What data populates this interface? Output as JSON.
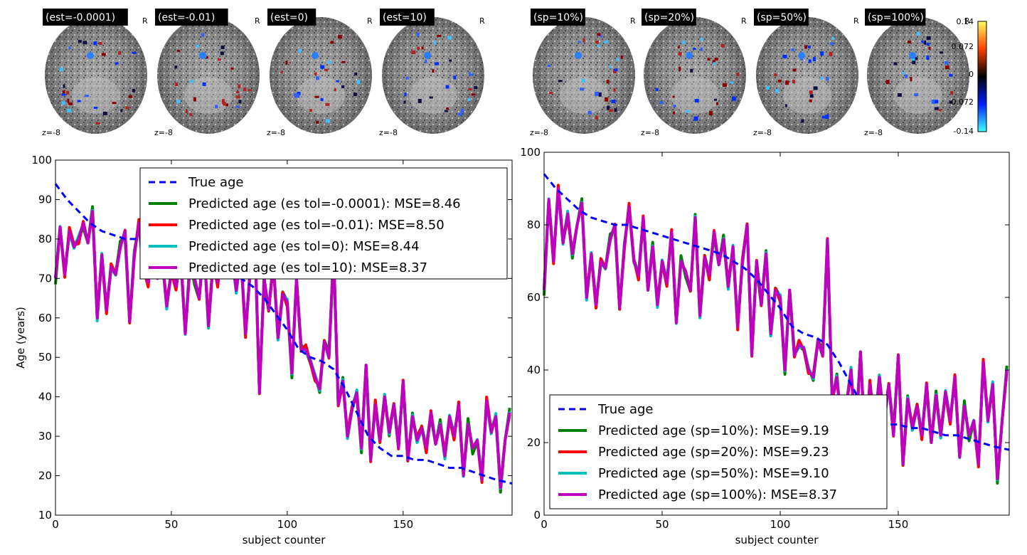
{
  "brains": {
    "left": [
      {
        "label": "(est=-0.0001)",
        "orient": "R",
        "z": "z=-8"
      },
      {
        "label": "(est=-0.01)",
        "orient": "R",
        "z": "z=-8"
      },
      {
        "label": "(est=0)",
        "orient": "R",
        "z": "z=-8"
      },
      {
        "label": "(est=10)",
        "orient": "R",
        "z": "z=-8"
      }
    ],
    "right": [
      {
        "label": "(sp=10%)",
        "orient": "R",
        "z": "z=-8"
      },
      {
        "label": "(sp=20%)",
        "orient": "R",
        "z": "z=-8"
      },
      {
        "label": "(sp=50%)",
        "orient": "R",
        "z": "z=-8"
      },
      {
        "label": "(sp=100%)",
        "orient": "R",
        "z": "z=-8"
      }
    ]
  },
  "colorbar": {
    "ticks": [
      "0.14",
      "0.072",
      "0",
      "-0.072",
      "-0.14"
    ],
    "colors": [
      "#ffff60",
      "#ff4000",
      "#000000",
      "#0020ff",
      "#40ffff"
    ]
  },
  "chart_data": [
    {
      "type": "line",
      "xlabel": "subject counter",
      "ylabel": "Age (years)",
      "xlim": [
        0,
        197
      ],
      "ylim": [
        10,
        100
      ],
      "xticks": [
        0,
        50,
        100,
        150
      ],
      "yticks": [
        10,
        20,
        30,
        40,
        50,
        60,
        70,
        80,
        90,
        100
      ],
      "legend_position": "top-center",
      "series": [
        {
          "name": "True age",
          "style": "dashed",
          "color": "#0000ff"
        },
        {
          "name": "Predicted age (es tol=-0.0001): MSE=8.46",
          "color": "#008000"
        },
        {
          "name": "Predicted age (es tol=-0.01): MSE=8.50",
          "color": "#ff0000"
        },
        {
          "name": "Predicted age (es tol=0): MSE=8.44",
          "color": "#00bfbf"
        },
        {
          "name": "Predicted age (es tol=10): MSE=8.37",
          "color": "#bf00bf"
        }
      ],
      "true_age_x": [
        0,
        5,
        10,
        15,
        20,
        25,
        30,
        35,
        40,
        45,
        50,
        55,
        60,
        65,
        70,
        75,
        80,
        85,
        90,
        95,
        100,
        105,
        110,
        115,
        120,
        125,
        130,
        135,
        140,
        145,
        150,
        155,
        160,
        165,
        170,
        175,
        180,
        185,
        190,
        197
      ],
      "true_age_y": [
        94,
        90,
        87,
        84,
        82,
        81,
        80,
        80,
        79,
        78,
        77,
        76,
        75,
        74,
        73,
        72,
        70,
        68,
        65,
        61,
        57,
        52,
        50,
        49,
        47,
        42,
        36,
        30,
        27,
        25,
        25,
        24,
        24,
        23,
        22,
        22,
        21,
        20,
        19,
        18
      ],
      "predicted_x": [
        0,
        2,
        4,
        6,
        8,
        10,
        12,
        14,
        16,
        18,
        20,
        22,
        24,
        26,
        28,
        30,
        32,
        34,
        36,
        38,
        40,
        42,
        44,
        46,
        48,
        50,
        52,
        54,
        56,
        58,
        60,
        62,
        64,
        66,
        68,
        70,
        72,
        74,
        76,
        78,
        80,
        82,
        84,
        86,
        88,
        90,
        92,
        94,
        96,
        98,
        100,
        102,
        104,
        106,
        108,
        110,
        112,
        114,
        116,
        118,
        120,
        122,
        124,
        126,
        128,
        130,
        132,
        134,
        136,
        138,
        140,
        142,
        144,
        146,
        148,
        150,
        152,
        154,
        156,
        158,
        160,
        162,
        164,
        166,
        168,
        170,
        172,
        174,
        176,
        178,
        180,
        182,
        184,
        186,
        188,
        190,
        192,
        194,
        196
      ],
      "predicted_y": [
        70,
        83,
        71,
        82,
        78,
        80,
        84,
        79,
        87,
        60,
        76,
        62,
        73,
        71,
        78,
        82,
        59,
        76,
        84,
        72,
        69,
        83,
        70,
        75,
        63,
        72,
        68,
        76,
        56,
        73,
        70,
        65,
        79,
        58,
        74,
        69,
        80,
        71,
        76,
        67,
        76,
        56,
        72,
        80,
        41,
        70,
        62,
        74,
        55,
        66,
        64,
        46,
        70,
        52,
        52,
        49,
        45,
        42,
        54,
        50,
        77,
        38,
        44,
        30,
        37,
        41,
        27,
        48,
        24,
        38,
        29,
        40,
        31,
        38,
        27,
        44,
        24,
        35,
        29,
        32,
        27,
        36,
        28,
        33,
        25,
        35,
        30,
        38,
        20,
        33,
        27,
        29,
        19,
        39,
        31,
        35,
        17,
        29,
        36
      ]
    },
    {
      "type": "line",
      "xlabel": "subject counter",
      "ylabel": "",
      "xlim": [
        0,
        197
      ],
      "ylim": [
        0,
        100
      ],
      "xticks": [
        0,
        50,
        100,
        150
      ],
      "yticks": [
        0,
        20,
        40,
        60,
        80,
        100
      ],
      "legend_position": "bottom-left",
      "series": [
        {
          "name": "True age",
          "style": "dashed",
          "color": "#0000ff"
        },
        {
          "name": "Predicted age (sp=10%): MSE=9.19",
          "color": "#008000"
        },
        {
          "name": "Predicted age (sp=20%): MSE=9.23",
          "color": "#ff0000"
        },
        {
          "name": "Predicted age (sp=50%): MSE=9.10",
          "color": "#00bfbf"
        },
        {
          "name": "Predicted age (sp=100%): MSE=8.37",
          "color": "#bf00bf"
        }
      ],
      "true_age_x": [
        0,
        5,
        10,
        15,
        20,
        25,
        30,
        35,
        40,
        45,
        50,
        55,
        60,
        65,
        70,
        75,
        80,
        85,
        90,
        95,
        100,
        105,
        110,
        115,
        120,
        125,
        130,
        135,
        140,
        145,
        150,
        155,
        160,
        165,
        170,
        175,
        180,
        185,
        190,
        197
      ],
      "true_age_y": [
        94,
        90,
        87,
        84,
        82,
        81,
        80,
        80,
        79,
        78,
        77,
        76,
        75,
        74,
        73,
        72,
        70,
        68,
        65,
        61,
        57,
        52,
        50,
        49,
        47,
        42,
        36,
        30,
        27,
        25,
        25,
        24,
        24,
        23,
        22,
        22,
        21,
        20,
        19,
        18
      ],
      "predicted_x": [
        0,
        2,
        4,
        6,
        8,
        10,
        12,
        14,
        16,
        18,
        20,
        22,
        24,
        26,
        28,
        30,
        32,
        34,
        36,
        38,
        40,
        42,
        44,
        46,
        48,
        50,
        52,
        54,
        56,
        58,
        60,
        62,
        64,
        66,
        68,
        70,
        72,
        74,
        76,
        78,
        80,
        82,
        84,
        86,
        88,
        90,
        92,
        94,
        96,
        98,
        100,
        102,
        104,
        106,
        108,
        110,
        112,
        114,
        116,
        118,
        120,
        122,
        124,
        126,
        128,
        130,
        132,
        134,
        136,
        138,
        140,
        142,
        144,
        146,
        148,
        150,
        152,
        154,
        156,
        158,
        160,
        162,
        164,
        166,
        168,
        170,
        172,
        174,
        176,
        178,
        180,
        182,
        184,
        186,
        188,
        190,
        192,
        194,
        196
      ],
      "predicted_y": [
        62,
        87,
        70,
        90,
        75,
        83,
        72,
        80,
        86,
        60,
        72,
        58,
        70,
        68,
        76,
        80,
        57,
        74,
        85,
        70,
        66,
        82,
        62,
        74,
        58,
        70,
        64,
        78,
        53,
        70,
        67,
        62,
        82,
        55,
        71,
        66,
        78,
        69,
        76,
        63,
        74,
        52,
        70,
        80,
        44,
        70,
        58,
        72,
        50,
        62,
        60,
        40,
        62,
        44,
        47,
        46,
        40,
        38,
        48,
        44,
        76,
        32,
        38,
        24,
        30,
        40,
        22,
        45,
        18,
        36,
        24,
        38,
        26,
        36,
        22,
        44,
        14,
        32,
        24,
        30,
        22,
        36,
        20,
        33,
        22,
        34,
        26,
        38,
        16,
        30,
        22,
        26,
        14,
        42,
        26,
        36,
        10,
        26,
        40
      ]
    }
  ]
}
